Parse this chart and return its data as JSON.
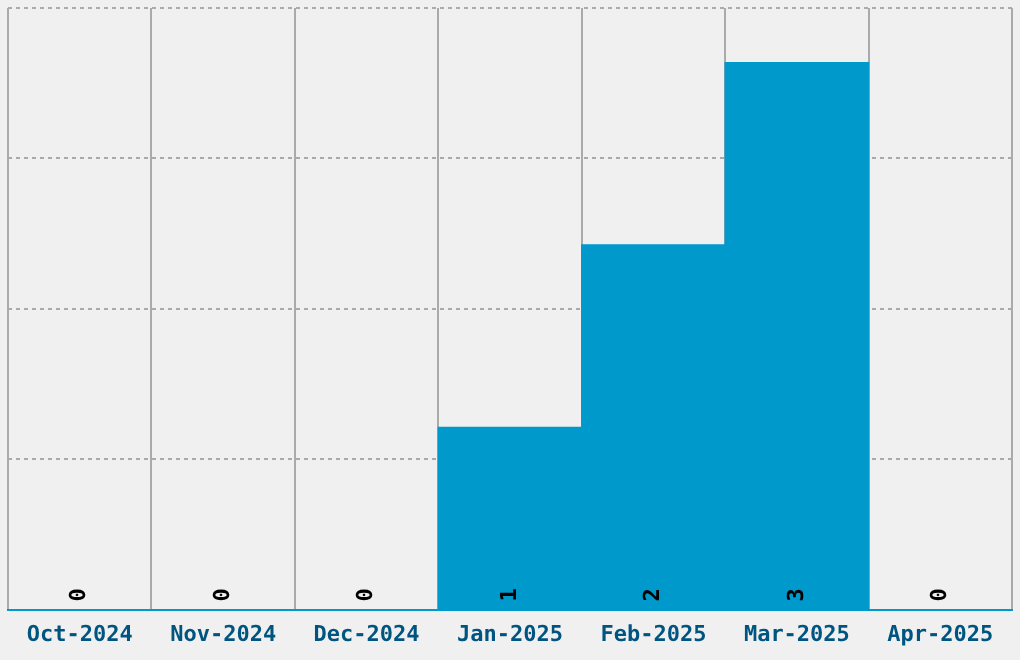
{
  "chart_data": {
    "type": "bar",
    "categories": [
      "Oct-2024",
      "Nov-2024",
      "Dec-2024",
      "Jan-2025",
      "Feb-2025",
      "Mar-2025",
      "Apr-2025"
    ],
    "values": [
      0,
      0,
      0,
      1,
      2,
      3,
      0
    ],
    "color": "#0099cc",
    "ylim": [
      0,
      3.3
    ],
    "yticks": [
      {
        "value": 0,
        "label": null
      },
      {
        "value": 0.825,
        "label": null
      },
      {
        "value": 1.65,
        "label": null
      },
      {
        "value": 2.475,
        "label": null
      },
      {
        "value": 3.3,
        "label": null
      }
    ],
    "grid": true,
    "tick_labels": "x",
    "data_labels": true
  }
}
